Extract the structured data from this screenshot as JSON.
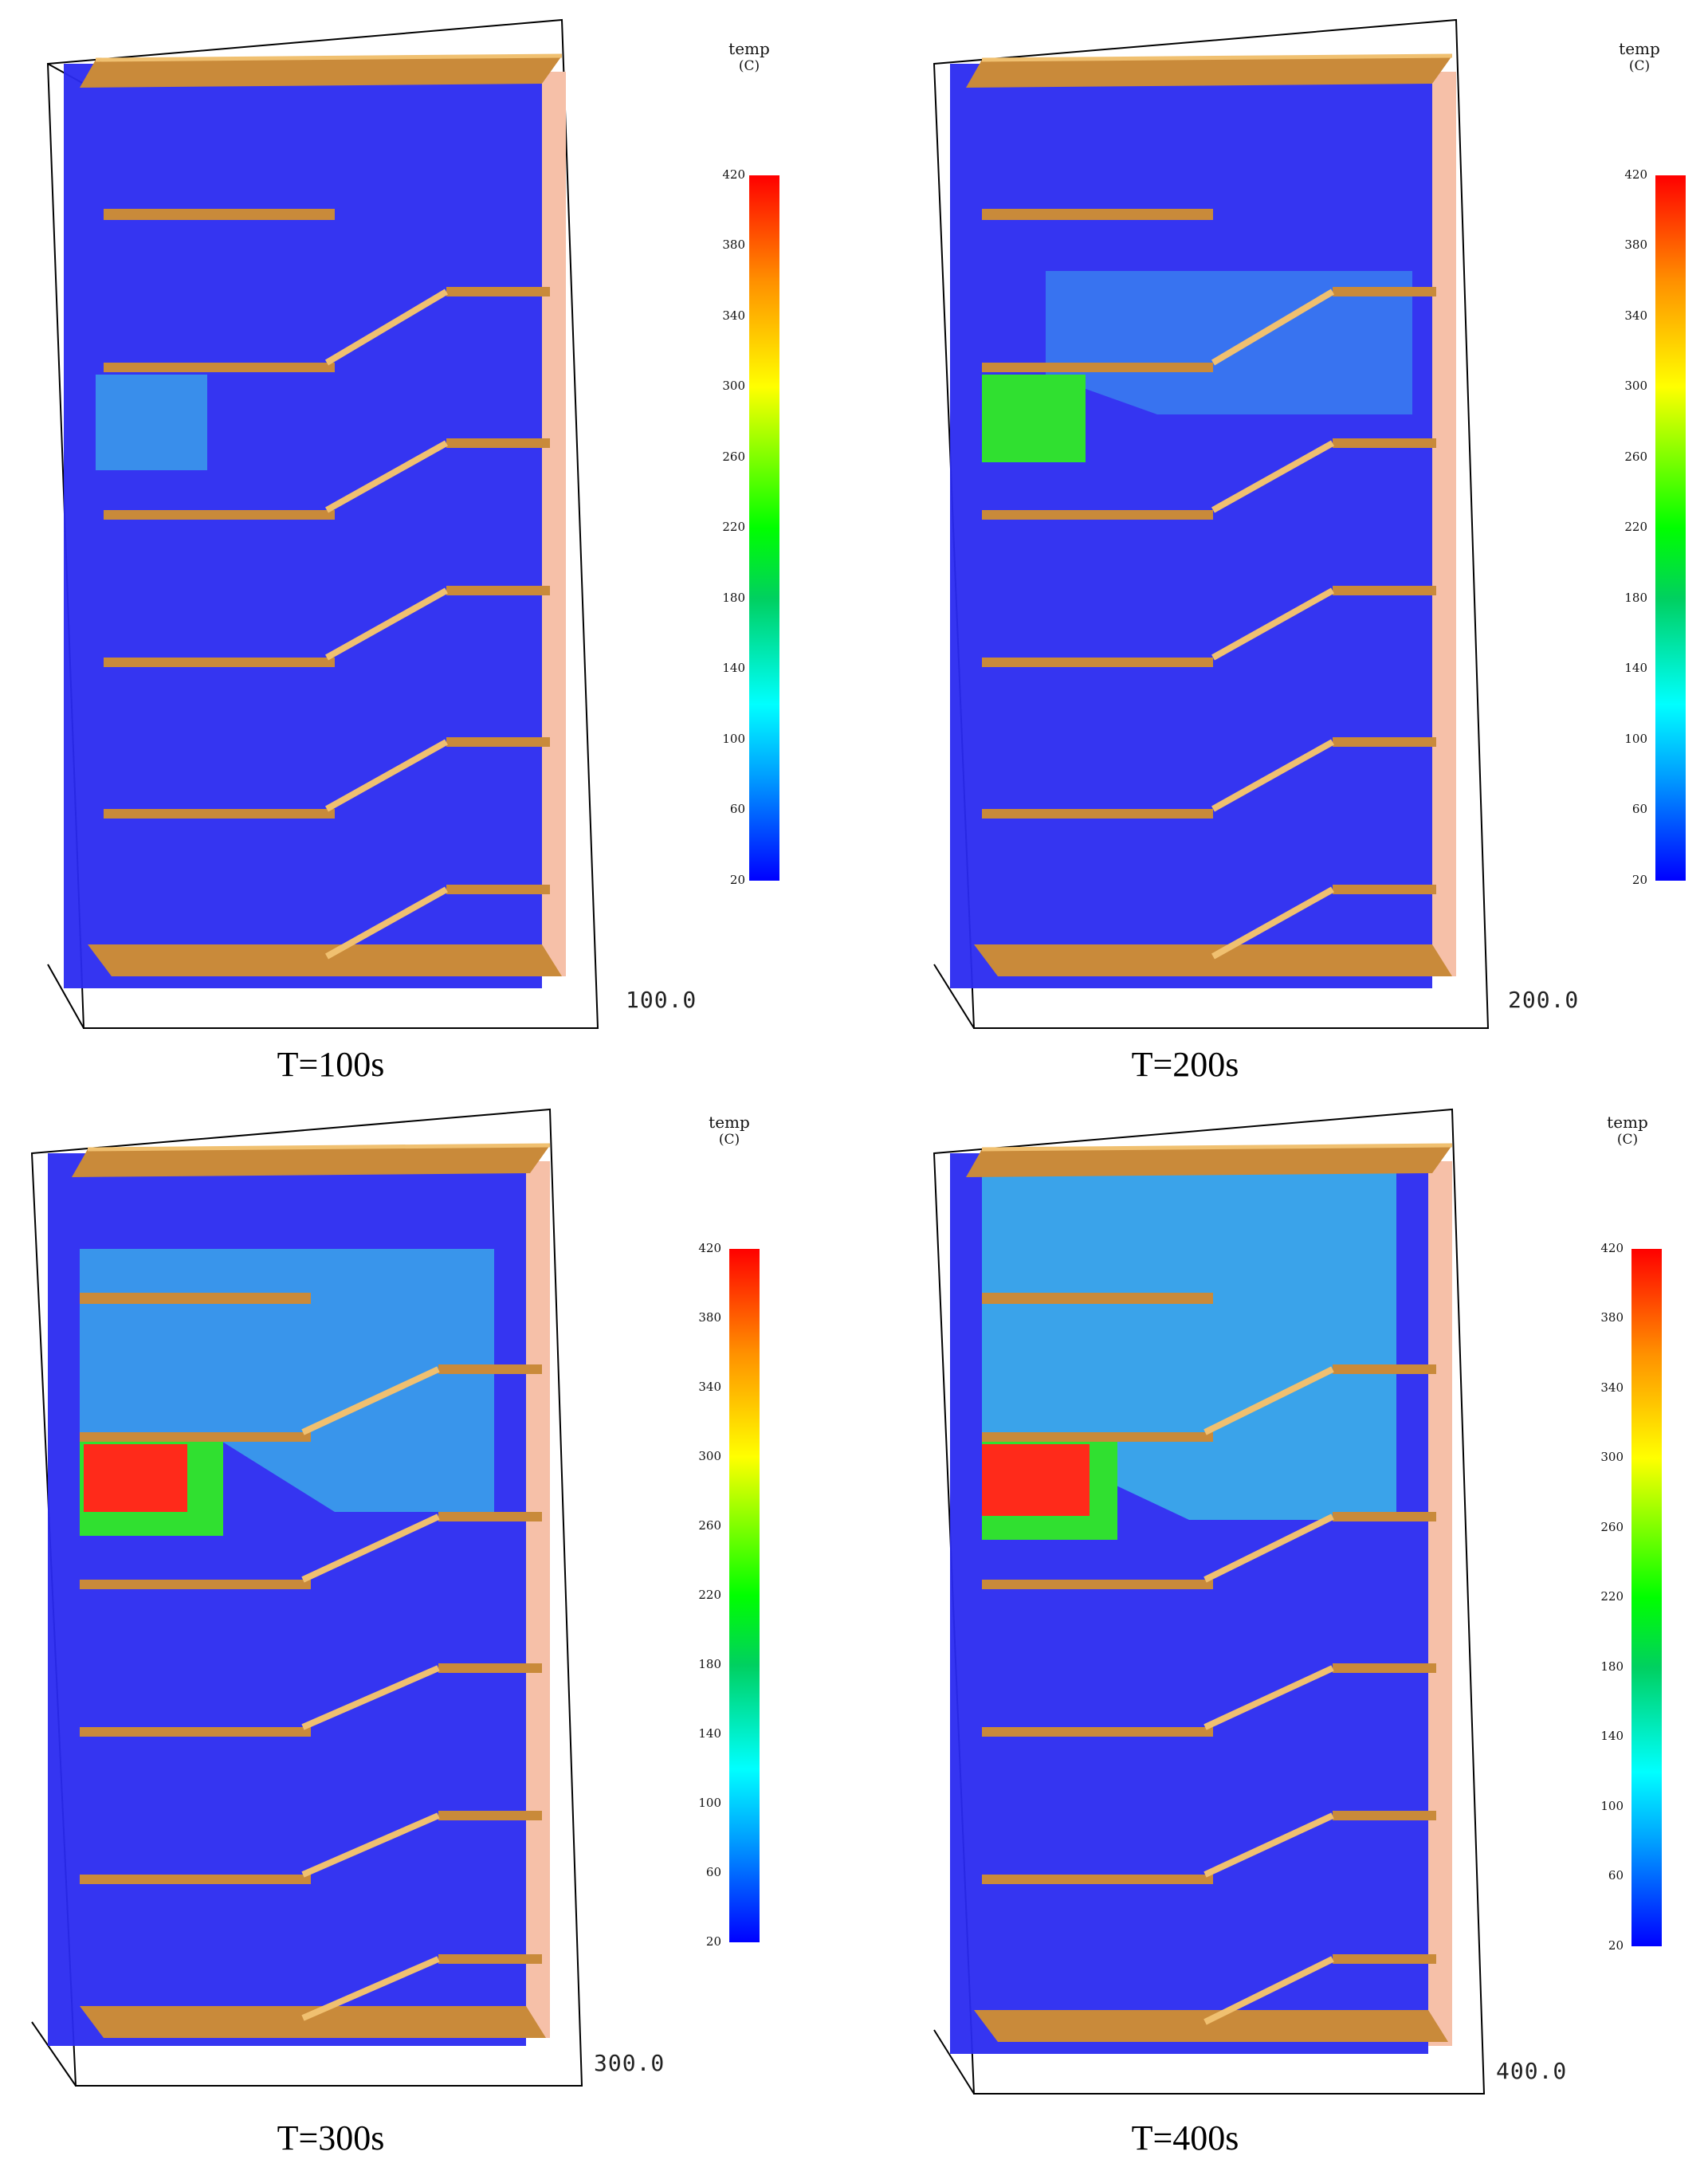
{
  "legend": {
    "title": "temp",
    "unit": "(C)",
    "ticks": [
      "420",
      "380",
      "340",
      "300",
      "260",
      "220",
      "180",
      "140",
      "100",
      "60",
      "20"
    ]
  },
  "panels": [
    {
      "caption": "T=100s",
      "time_readout": "100.0"
    },
    {
      "caption": "T=200s",
      "time_readout": "200.0"
    },
    {
      "caption": "T=300s",
      "time_readout": "300.0"
    },
    {
      "caption": "T=400s",
      "time_readout": "400.0"
    }
  ],
  "colors": {
    "cold": "#2a2af0",
    "slab": "#c98a3a",
    "slab_edge": "#f0c070",
    "hot": "#ff2a1a",
    "warm": "#30e030",
    "mild": "#3cbfe8",
    "wall": "#f6c0a8"
  }
}
